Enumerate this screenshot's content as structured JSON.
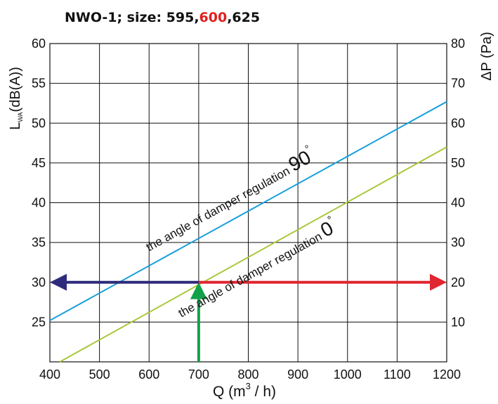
{
  "title": {
    "prefix": "NWO-1;  size: 595,",
    "highlight": "600",
    "suffix": ",625"
  },
  "colors": {
    "line_90": "#1aa0dc",
    "line_0": "#a8c83a",
    "arrow_left": "#2e2a7c",
    "arrow_right": "#e02630",
    "arrow_up": "#12a14a",
    "title_highlight": "#e02020",
    "grid": "#111111"
  },
  "chart_data": {
    "type": "line",
    "xlabel_main": "Q (m",
    "xlabel_sup": "3",
    "xlabel_tail": " / h)",
    "ylabel_left_main": "L",
    "ylabel_left_sub": "WA",
    "ylabel_left_tail": "(dB(A))",
    "ylabel_right": "ΔP (Pa)",
    "xlim": [
      400,
      1200
    ],
    "ylim_left": [
      20,
      60
    ],
    "ylim_right": [
      0,
      80
    ],
    "x_ticks": [
      400,
      500,
      600,
      700,
      800,
      900,
      1000,
      1100,
      1200
    ],
    "y_left_ticks": [
      25,
      30,
      35,
      40,
      45,
      50,
      55,
      60
    ],
    "y_right_ticks": [
      10,
      20,
      30,
      40,
      50,
      60,
      70,
      80
    ],
    "grid": true,
    "series": [
      {
        "name": "the angle of damper regulation 90°",
        "label_text": "the angle of damper regulation",
        "label_angle": "90",
        "label_deg": "°",
        "axis": "left",
        "x": [
          400,
          1200
        ],
        "y": [
          25.2,
          52.7
        ]
      },
      {
        "name": "the angle of damper regulation 0°",
        "label_text": "the angle of damper regulation",
        "label_angle": "0",
        "label_deg": "°",
        "axis": "left",
        "x": [
          420,
          1200
        ],
        "y": [
          20,
          47
        ]
      }
    ],
    "arrows": [
      {
        "name": "up",
        "from": [
          700,
          20
        ],
        "to": [
          700,
          30
        ]
      },
      {
        "name": "left",
        "from": [
          700,
          30
        ],
        "to": [
          400,
          30
        ]
      },
      {
        "name": "right",
        "from": [
          700,
          30
        ],
        "to": [
          1200,
          30
        ]
      }
    ]
  }
}
